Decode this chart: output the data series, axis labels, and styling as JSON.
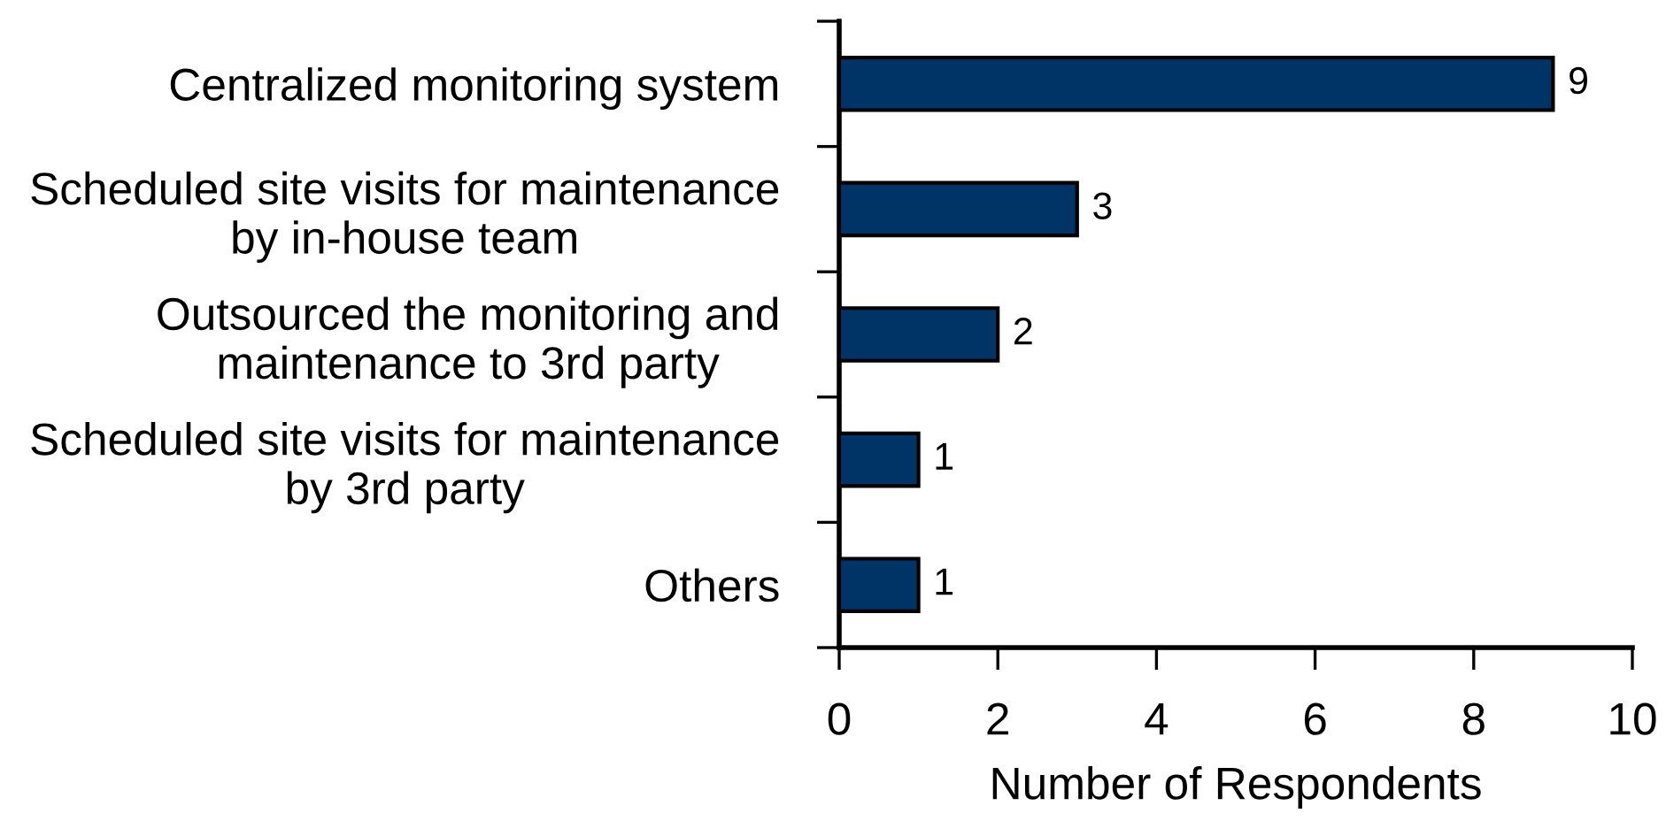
{
  "chart_data": {
    "type": "bar",
    "orientation": "horizontal",
    "categories": [
      "Centralized monitoring system",
      "Scheduled site visits for maintenance\nby in-house team",
      "Outsourced the monitoring and\nmaintenance to 3rd party",
      "Scheduled site visits for maintenance\nby 3rd party",
      "Others"
    ],
    "values": [
      9,
      3,
      2,
      1,
      1
    ],
    "color": "#003366",
    "xlabel": "Number of Respondents",
    "xlim": [
      0,
      10
    ],
    "xticks": [
      0,
      2,
      4,
      6,
      8,
      10
    ],
    "data_labels": true
  }
}
